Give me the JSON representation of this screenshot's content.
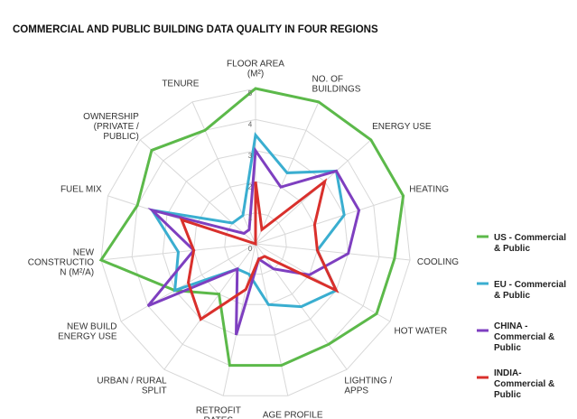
{
  "chart_data": {
    "type": "radar",
    "title": "COMMERCIAL AND PUBLIC BUILDING DATA QUALITY IN FOUR REGIONS",
    "categories": [
      "FLOOR AREA\n(M²)",
      "NO. OF\nBUILDINGS",
      "ENERGY USE",
      "HEATING",
      "COOLING",
      "HOT WATER",
      "LIGHTING /\nAPPS",
      "AGE PROFILE",
      "RETROFIT\nRATES",
      "URBAN / RURAL\nSPLIT",
      "NEW BUILD\nENERGY USE",
      "NEW\nCONSTRUCTIO\nN (M²/A)",
      "FUEL MIX",
      "OWNERSHIP\n(PRIVATE /\nPUBLIC)",
      "TENURE"
    ],
    "ylim": [
      0,
      5
    ],
    "yticks": [
      0,
      1,
      2,
      3,
      4,
      5
    ],
    "grid": true,
    "series": [
      {
        "name": "US - Commercial\n& Public",
        "color": "#5cb94a",
        "values": [
          5,
          5,
          5,
          5,
          4.5,
          4.5,
          4,
          4,
          4,
          2,
          3,
          5,
          4,
          4.5,
          4
        ]
      },
      {
        "name": "EU - Commercial\n& Public",
        "color": "#3aaed0",
        "values": [
          3.5,
          2.5,
          3.5,
          3,
          2,
          3,
          2.5,
          2,
          1,
          1,
          3,
          2.5,
          3.5,
          1,
          1
        ]
      },
      {
        "name": "CHINA -\nCommercial &\nPublic",
        "color": "#7e3fc0",
        "values": [
          3,
          2,
          3.5,
          3.5,
          3,
          2,
          1,
          0.5,
          3,
          1,
          4,
          2,
          3.5,
          0.5,
          0.5
        ]
      },
      {
        "name": "INDIA-\nCommercial &\nPublic",
        "color": "#d9302c",
        "values": [
          2,
          0.5,
          3,
          2,
          2,
          3,
          0.5,
          0.5,
          1.5,
          3,
          2.5,
          2,
          2.5,
          0,
          0
        ]
      }
    ]
  }
}
